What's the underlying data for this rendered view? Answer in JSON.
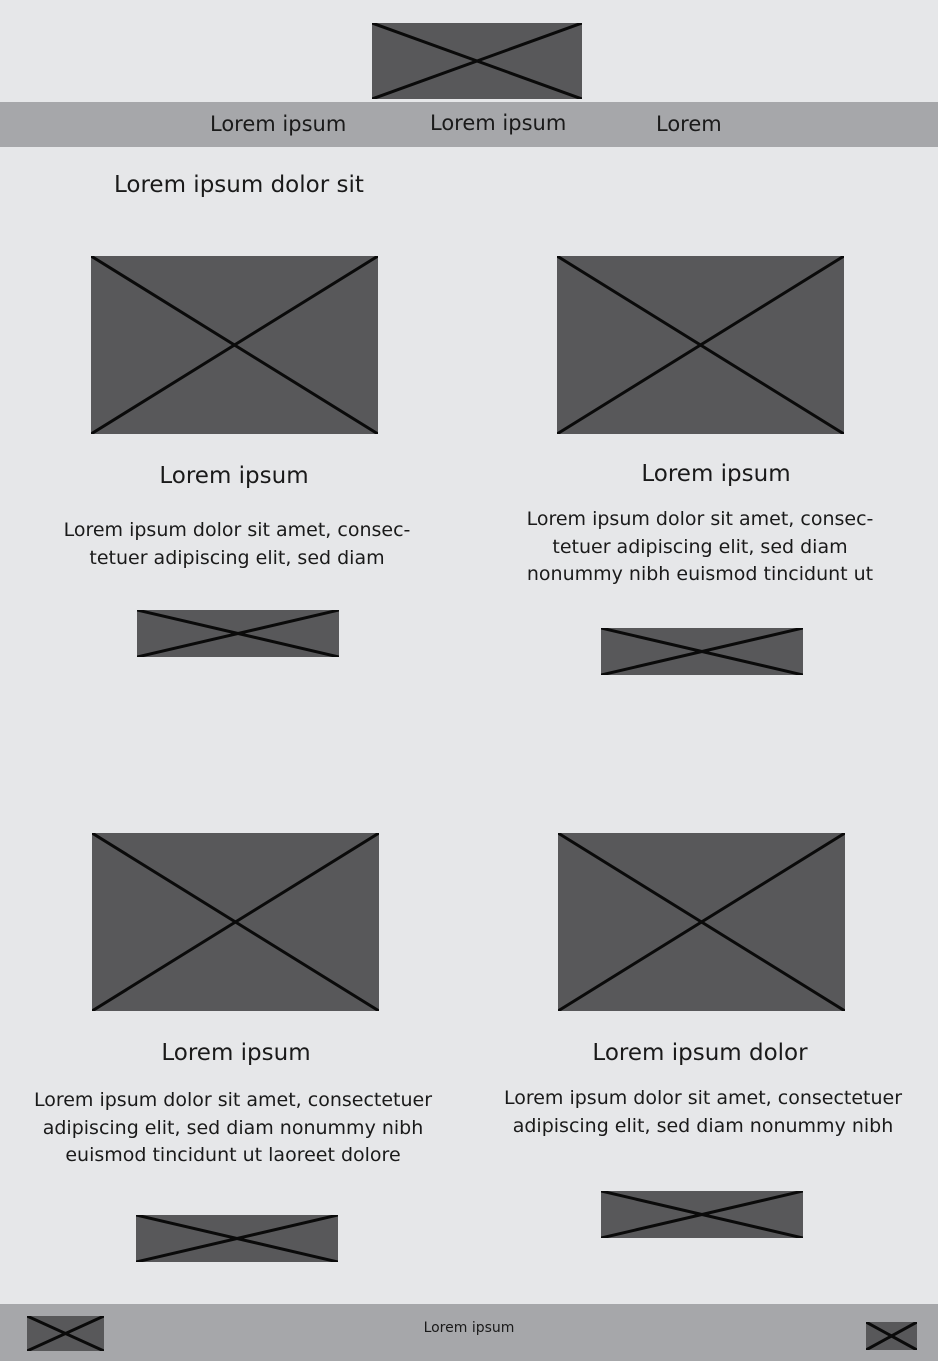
{
  "header": {
    "logo_icon": "image-placeholder-icon"
  },
  "nav": {
    "items": [
      {
        "label": "Lorem ipsum"
      },
      {
        "label": "Lorem ipsum"
      },
      {
        "label": "Lorem"
      }
    ]
  },
  "section": {
    "title": "Lorem ipsum dolor sit"
  },
  "cards": [
    {
      "title": "Lorem ipsum",
      "body_lines": [
        "Lorem ipsum dolor sit amet, consec-",
        "tetuer adipiscing elit, sed diam"
      ],
      "image_icon": "image-placeholder-icon",
      "button_icon": "button-placeholder-icon"
    },
    {
      "title": "Lorem ipsum",
      "body_lines": [
        "Lorem ipsum dolor sit amet, consec-",
        "tetuer adipiscing elit, sed diam",
        "nonummy nibh euismod tincidunt ut"
      ],
      "image_icon": "image-placeholder-icon",
      "button_icon": "button-placeholder-icon"
    },
    {
      "title": "Lorem ipsum",
      "body_lines": [
        "Lorem ipsum dolor sit amet, consectetuer",
        "adipiscing elit, sed diam nonummy nibh",
        "euismod tincidunt ut laoreet dolore"
      ],
      "image_icon": "image-placeholder-icon",
      "button_icon": "button-placeholder-icon"
    },
    {
      "title": "Lorem ipsum dolor",
      "body_lines": [
        "Lorem ipsum dolor sit amet, consectetuer",
        "adipiscing elit, sed diam nonummy nibh"
      ],
      "image_icon": "image-placeholder-icon",
      "button_icon": "button-placeholder-icon"
    }
  ],
  "footer": {
    "text": "Lorem ipsum",
    "left_icon": "image-placeholder-icon",
    "right_icon": "image-placeholder-icon"
  },
  "colors": {
    "background": "#e6e7e9",
    "bar": "#a6a7aa",
    "placeholder": "#58585a"
  }
}
